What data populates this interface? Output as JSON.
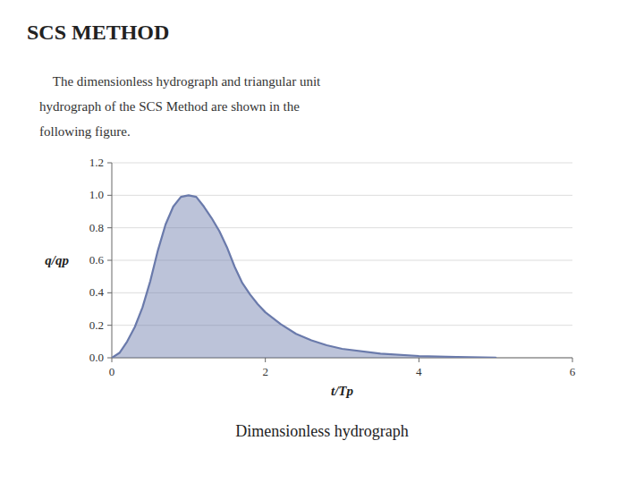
{
  "chart_data": {
    "type": "area",
    "title": "SCS METHOD",
    "subtitle": [
      "    The dimensionless hydrograph and triangular unit",
      "hydrograph of the SCS Method are shown in the",
      "following figure."
    ],
    "caption": "Dimensionless hydrograph",
    "x_label": "t/Tp",
    "y_label": "q/qp",
    "x": [
      0,
      0.1,
      0.2,
      0.3,
      0.4,
      0.5,
      0.6,
      0.7,
      0.8,
      0.9,
      1.0,
      1.1,
      1.2,
      1.3,
      1.4,
      1.5,
      1.6,
      1.7,
      1.8,
      1.9,
      2.0,
      2.2,
      2.4,
      2.6,
      2.8,
      3.0,
      3.5,
      4.0,
      4.5,
      5.0
    ],
    "values": [
      0,
      0.03,
      0.1,
      0.19,
      0.31,
      0.47,
      0.66,
      0.82,
      0.93,
      0.99,
      1.0,
      0.99,
      0.93,
      0.86,
      0.78,
      0.68,
      0.56,
      0.46,
      0.39,
      0.33,
      0.28,
      0.207,
      0.147,
      0.107,
      0.077,
      0.055,
      0.025,
      0.011,
      0.005,
      0.001
    ],
    "color": "#6a7aab",
    "xlim": [
      0,
      6
    ],
    "ylim": [
      0,
      1.2
    ],
    "xticks": [
      0,
      2,
      4,
      6
    ],
    "yticks": [
      {
        "value": 0,
        "label": "0.0"
      },
      0.2,
      0.4,
      0.6,
      0.8,
      {
        "value": 1.0,
        "label": "1.0"
      },
      1.2
    ],
    "grid": true
  }
}
